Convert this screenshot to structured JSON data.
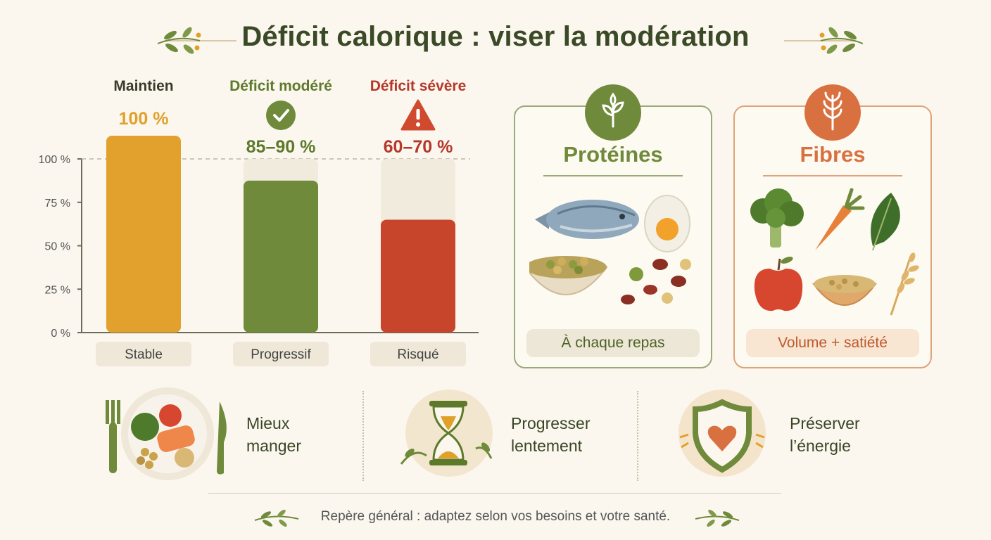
{
  "title": "Déficit calorique : viser la modération",
  "chart_data": {
    "type": "bar",
    "categories": [
      "Maintien",
      "Déficit modéré",
      "Déficit sévère"
    ],
    "values": [
      100,
      87.5,
      65
    ],
    "value_labels": [
      "100 %",
      "85–90 %",
      "60–70 %"
    ],
    "bar_captions": [
      "Stable",
      "Progressif",
      "Risqué"
    ],
    "status_icons": [
      "",
      "check-circle-icon",
      "warning-triangle-icon"
    ],
    "colors": [
      "#e2a02c",
      "#6f8a3a",
      "#c7452b"
    ],
    "label_colors": [
      "#3a3a2a",
      "#5d7a2b",
      "#b5382a"
    ],
    "value_colors": [
      "#e0a12a",
      "#5d7a2b",
      "#b5382a"
    ],
    "y_ticks": [
      "0 %",
      "25 %",
      "50 %",
      "75 %",
      "100 %"
    ],
    "ylim": [
      0,
      100
    ],
    "reference_line": 100,
    "grid": false
  },
  "cards": {
    "proteins": {
      "title": "Protéines",
      "tag": "À chaque repas",
      "accent": "#6f8a3a",
      "border": "#9aa97a",
      "tag_bg": "#ece7d6",
      "icon": "sprout-icon",
      "foods": [
        "fish-icon",
        "egg-icon",
        "legumes-bowl-icon",
        "beans-icon"
      ]
    },
    "fibres": {
      "title": "Fibres",
      "tag": "Volume + satiété",
      "accent": "#d9703f",
      "border": "#e0a27a",
      "tag_bg": "#f8e6d3",
      "icon": "wheat-icon",
      "foods": [
        "broccoli-icon",
        "carrot-icon",
        "spinach-icon",
        "apple-icon",
        "oats-bowl-icon",
        "wheat-ear-icon"
      ]
    }
  },
  "tips": [
    {
      "line1": "Mieux",
      "line2": "manger",
      "icon": "plate-icon"
    },
    {
      "line1": "Progresser",
      "line2": "lentement",
      "icon": "hourglass-icon"
    },
    {
      "line1": "Préserver",
      "line2": "l’énergie",
      "icon": "shield-heart-icon"
    }
  ],
  "footnote": "Repère général : adaptez selon vos besoins et votre santé."
}
